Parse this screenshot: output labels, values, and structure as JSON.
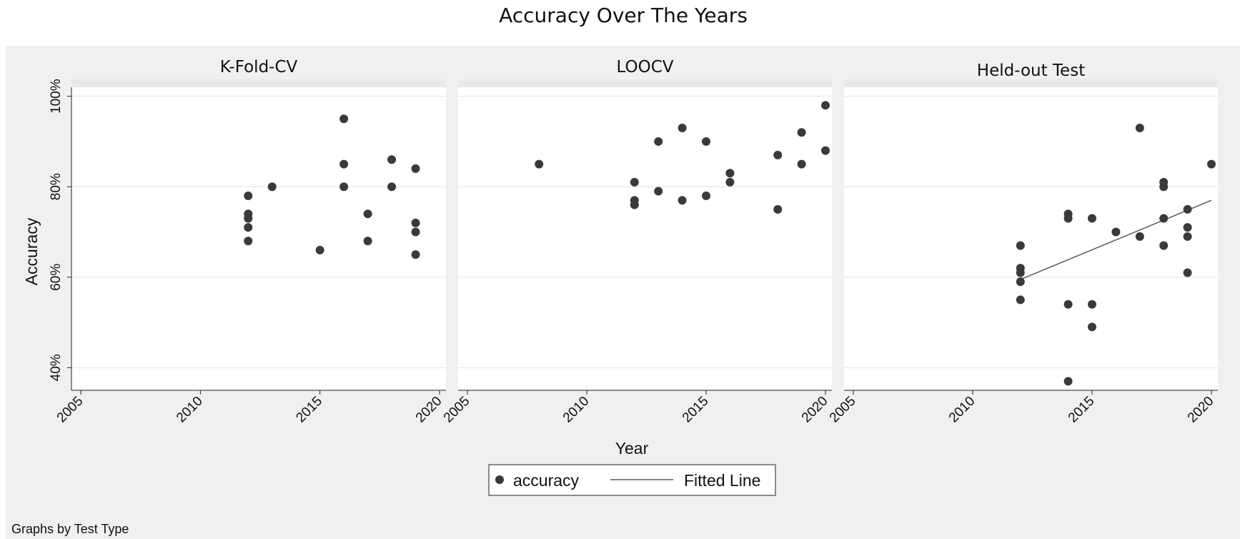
{
  "colors": {
    "outer_background": "#f0f0f0",
    "plot_background": "#ffffff",
    "gridline": "#ebebeb",
    "marker": "#3a3a3a",
    "fit_line": "#5a5a5a",
    "text": "#111111"
  },
  "chart_data": {
    "type": "scatter",
    "title": "Accuracy Over The Years",
    "xlabel": "Year",
    "ylabel": "Accuracy",
    "xlim": [
      2005,
      2020
    ],
    "ylim": [
      35,
      102
    ],
    "x_ticks": [
      2005,
      2010,
      2015,
      2020
    ],
    "y_ticks": [
      {
        "value": 40,
        "label": "40%"
      },
      {
        "value": 60,
        "label": "60%"
      },
      {
        "value": 80,
        "label": "80%"
      },
      {
        "value": 100,
        "label": "100%"
      }
    ],
    "grid": true,
    "legend": {
      "position": "bottom-center",
      "items": [
        {
          "label": "accuracy",
          "type": "marker"
        },
        {
          "label": "Fitted Line",
          "type": "line"
        }
      ]
    },
    "note": "Graphs by Test Type",
    "panels": [
      {
        "title": "K-Fold-CV",
        "points": [
          {
            "x": 2012,
            "y": 78
          },
          {
            "x": 2012,
            "y": 74
          },
          {
            "x": 2012,
            "y": 73
          },
          {
            "x": 2012,
            "y": 71
          },
          {
            "x": 2012,
            "y": 68
          },
          {
            "x": 2013,
            "y": 80
          },
          {
            "x": 2015,
            "y": 66
          },
          {
            "x": 2016,
            "y": 95
          },
          {
            "x": 2016,
            "y": 85
          },
          {
            "x": 2016,
            "y": 80
          },
          {
            "x": 2017,
            "y": 74
          },
          {
            "x": 2017,
            "y": 68
          },
          {
            "x": 2018,
            "y": 86
          },
          {
            "x": 2018,
            "y": 80
          },
          {
            "x": 2019,
            "y": 84
          },
          {
            "x": 2019,
            "y": 72
          },
          {
            "x": 2019,
            "y": 70
          },
          {
            "x": 2019,
            "y": 65
          }
        ],
        "fit": null
      },
      {
        "title": "LOOCV",
        "points": [
          {
            "x": 2008,
            "y": 85
          },
          {
            "x": 2012,
            "y": 81
          },
          {
            "x": 2012,
            "y": 77
          },
          {
            "x": 2012,
            "y": 76
          },
          {
            "x": 2013,
            "y": 90
          },
          {
            "x": 2013,
            "y": 79
          },
          {
            "x": 2014,
            "y": 93
          },
          {
            "x": 2014,
            "y": 77
          },
          {
            "x": 2015,
            "y": 90
          },
          {
            "x": 2015,
            "y": 78
          },
          {
            "x": 2016,
            "y": 83
          },
          {
            "x": 2016,
            "y": 81
          },
          {
            "x": 2018,
            "y": 87
          },
          {
            "x": 2018,
            "y": 75
          },
          {
            "x": 2019,
            "y": 92
          },
          {
            "x": 2019,
            "y": 85
          },
          {
            "x": 2020,
            "y": 98
          },
          {
            "x": 2020,
            "y": 88
          }
        ],
        "fit": null
      },
      {
        "title": "Held-out Test",
        "points": [
          {
            "x": 2012,
            "y": 67
          },
          {
            "x": 2012,
            "y": 62
          },
          {
            "x": 2012,
            "y": 61
          },
          {
            "x": 2012,
            "y": 59
          },
          {
            "x": 2012,
            "y": 55
          },
          {
            "x": 2014,
            "y": 74
          },
          {
            "x": 2014,
            "y": 73
          },
          {
            "x": 2014,
            "y": 54
          },
          {
            "x": 2014,
            "y": 37
          },
          {
            "x": 2015,
            "y": 73
          },
          {
            "x": 2015,
            "y": 54
          },
          {
            "x": 2015,
            "y": 49
          },
          {
            "x": 2016,
            "y": 70
          },
          {
            "x": 2017,
            "y": 93
          },
          {
            "x": 2017,
            "y": 69
          },
          {
            "x": 2018,
            "y": 81
          },
          {
            "x": 2018,
            "y": 80
          },
          {
            "x": 2018,
            "y": 73
          },
          {
            "x": 2018,
            "y": 67
          },
          {
            "x": 2019,
            "y": 75
          },
          {
            "x": 2019,
            "y": 71
          },
          {
            "x": 2019,
            "y": 69
          },
          {
            "x": 2019,
            "y": 61
          },
          {
            "x": 2020,
            "y": 85
          }
        ],
        "fit": {
          "x": [
            2012,
            2020
          ],
          "y": [
            59.5,
            77
          ]
        }
      }
    ]
  }
}
